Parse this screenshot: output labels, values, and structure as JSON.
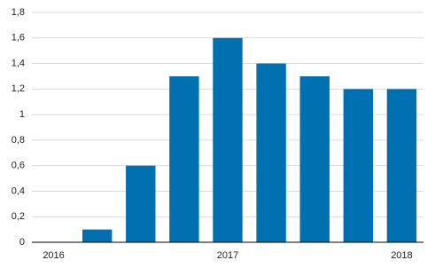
{
  "chart_data": {
    "type": "bar",
    "categories": [
      "2016",
      null,
      null,
      null,
      "2017",
      null,
      null,
      null,
      "2018"
    ],
    "values": [
      0,
      0.1,
      0.6,
      1.3,
      1.6,
      1.4,
      1.3,
      1.2,
      1.2
    ],
    "color": "#0070b0",
    "ylim": [
      0,
      1.8
    ],
    "yticks": [
      0,
      {
        "value": 0.2,
        "label": "0,2"
      },
      {
        "value": 0.4,
        "label": "0,4"
      },
      {
        "value": 0.6,
        "label": "0,6"
      },
      {
        "value": 0.8,
        "label": "0,8"
      },
      1,
      {
        "value": 1.2,
        "label": "1,2"
      },
      {
        "value": 1.4,
        "label": "1,4"
      },
      {
        "value": 1.6,
        "label": "1,6"
      },
      {
        "value": 1.8,
        "label": "1,8"
      }
    ],
    "grid": true
  }
}
